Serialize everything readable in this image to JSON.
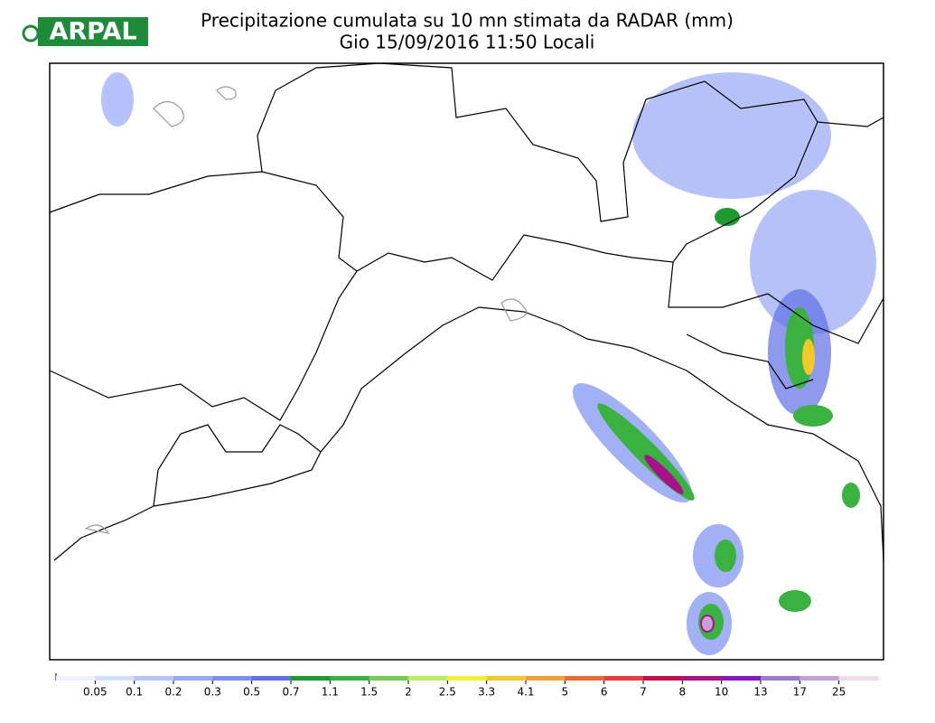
{
  "header": {
    "logo": "ARPAL",
    "title": "Precipitazione cumulata su 10 mn stimata da RADAR (mm)",
    "subtitle": "Gio 15/09/2016 11:50 Locali"
  },
  "legend": {
    "labels": [
      "0.05",
      "0.1",
      "0.2",
      "0.3",
      "0.5",
      "0.7",
      "1.1",
      "1.5",
      "2",
      "2.5",
      "3.3",
      "4.1",
      "5",
      "6",
      "7",
      "8",
      "10",
      "13",
      "17",
      "25"
    ],
    "colors": [
      "#eef2ff",
      "#d4deff",
      "#b4c4ff",
      "#96a8fa",
      "#7a8ef2",
      "#5f6fe6",
      "#1f9a30",
      "#3bb142",
      "#72cf52",
      "#b8ec64",
      "#f2f232",
      "#f2c82a",
      "#f0a032",
      "#e86c32",
      "#e83c3c",
      "#c4104c",
      "#a8108c",
      "#8a14c4",
      "#9a7ad2",
      "#c8a0d8",
      "#f0dce8"
    ]
  }
}
